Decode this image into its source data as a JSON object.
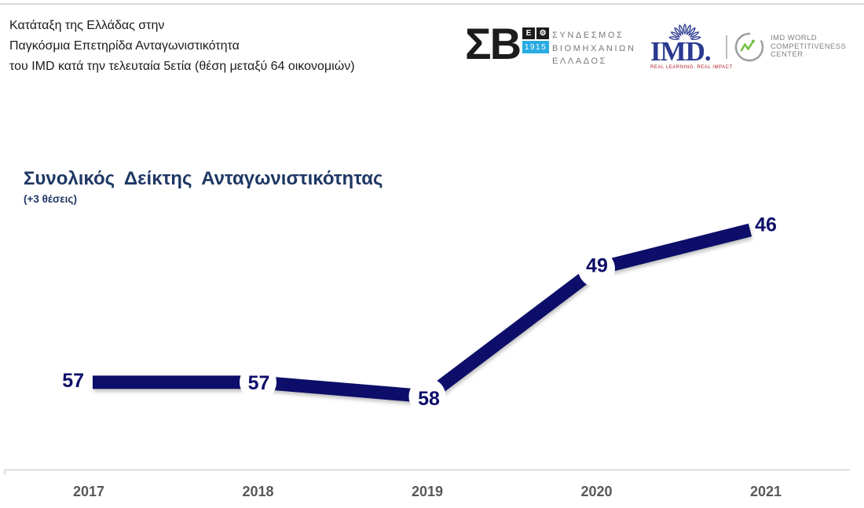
{
  "header": {
    "title_lines": [
      "Κατάταξη της Ελλάδας στην",
      "Παγκόσμια Επετηρίδα Ανταγωνιστικότητα",
      "του IMD κατά την τελευταία 5ετία (θέση μεταξύ 64 οικονομιών)"
    ]
  },
  "logos": {
    "sbe": {
      "acronym": "ΣΒ",
      "e_letter": "Ε",
      "year": "1915",
      "name_lines": [
        "ΣΥΝΔΕΣΜΟΣ",
        "ΒΙΟΜΗΧΑΝΙΩΝ",
        "ΕΛΛΑΔΟΣ"
      ]
    },
    "imd": {
      "wordmark": "IMD.",
      "tagline": "REAL LEARNING. REAL IMPACT"
    },
    "wcc": {
      "name_lines": [
        "IMD WORLD",
        "COMPETITIVENESS",
        "CENTER"
      ]
    }
  },
  "icons": {
    "gear": "⚙"
  },
  "chart_data": {
    "type": "line",
    "title": "Συνολικός Δείκτης Ανταγωνιστικότητας",
    "subtitle": "(+3 θέσεις)",
    "categories": [
      "2017",
      "2018",
      "2019",
      "2020",
      "2021"
    ],
    "values": [
      57,
      57,
      58,
      49,
      46
    ],
    "series_name": "Κατάταξη Ελλάδας (θέση μεταξύ 64 οικονομιών)",
    "y_axis_inverted": true,
    "ylim": [
      44,
      63
    ],
    "grid": false,
    "legend": "none",
    "line_color": "#0d0d6a",
    "value_label_color": "#0d0d6a",
    "axis_color": "#d9d9d9",
    "tick_label_color": "#595959"
  }
}
